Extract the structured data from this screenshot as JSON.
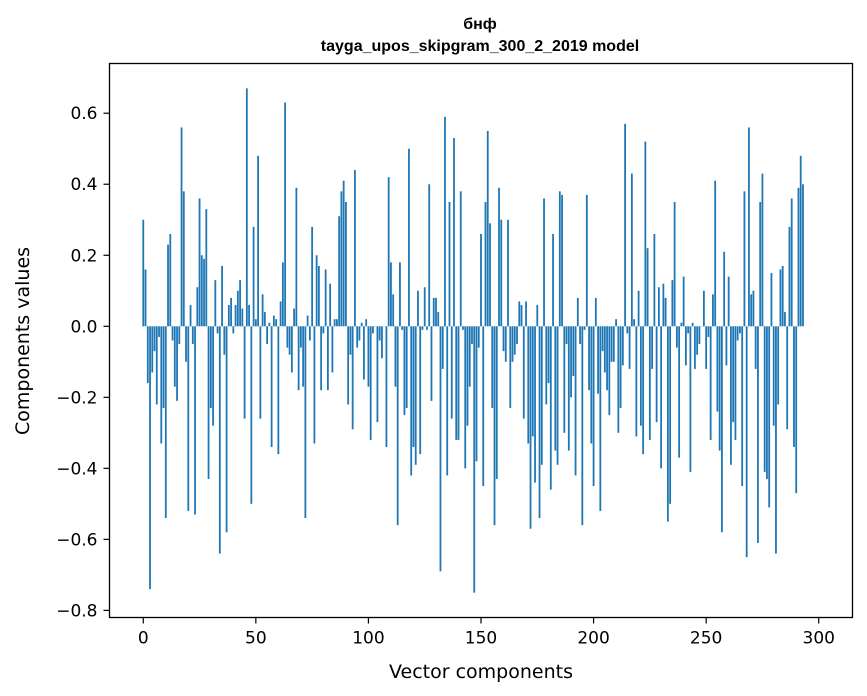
{
  "chart_data": {
    "type": "bar",
    "title": "бнф",
    "subtitle": "tayga_upos_skipgram_300_2_2019 model",
    "xlabel": "Vector components",
    "ylabel": "Components values",
    "xlim": [
      -15,
      315
    ],
    "ylim": [
      -0.82,
      0.74
    ],
    "xticks": [
      0,
      50,
      100,
      150,
      200,
      250,
      300
    ],
    "xtick_labels": [
      "0",
      "50",
      "100",
      "150",
      "200",
      "250",
      "300"
    ],
    "yticks": [
      -0.8,
      -0.6,
      -0.4,
      -0.2,
      0.0,
      0.2,
      0.4,
      0.6
    ],
    "ytick_labels": [
      "−0.8",
      "−0.6",
      "−0.4",
      "−0.2",
      "0.0",
      "0.2",
      "0.4",
      "0.6"
    ],
    "bar_color": "#1f77b4",
    "grid": false,
    "legend": false,
    "values": [
      0.3,
      0.16,
      -0.16,
      -0.74,
      -0.13,
      -0.07,
      -0.22,
      -0.03,
      -0.33,
      -0.23,
      -0.54,
      0.23,
      0.26,
      -0.04,
      -0.17,
      -0.21,
      -0.05,
      0.56,
      0.38,
      -0.1,
      -0.52,
      0.06,
      -0.05,
      -0.53,
      0.11,
      0.36,
      0.2,
      0.19,
      0.33,
      -0.43,
      -0.23,
      -0.28,
      0.13,
      -0.02,
      -0.64,
      0.17,
      -0.08,
      -0.58,
      0.06,
      0.08,
      -0.02,
      0.06,
      0.1,
      0.13,
      0.05,
      -0.26,
      0.67,
      0.06,
      -0.5,
      0.28,
      0.02,
      0.48,
      -0.26,
      0.09,
      0.04,
      -0.05,
      0.01,
      -0.34,
      0.03,
      0.02,
      -0.36,
      0.07,
      0.18,
      0.63,
      -0.06,
      -0.08,
      -0.13,
      0.05,
      0.39,
      -0.18,
      -0.06,
      -0.17,
      -0.54,
      0.03,
      -0.04,
      0.28,
      -0.33,
      0.2,
      0.17,
      -0.18,
      -0.02,
      0.16,
      -0.18,
      0.12,
      -0.13,
      0.02,
      0.02,
      0.31,
      0.38,
      0.41,
      0.35,
      -0.22,
      -0.08,
      -0.29,
      0.44,
      -0.06,
      -0.04,
      0.01,
      -0.15,
      0.02,
      -0.17,
      -0.32,
      -0.02,
      0.0,
      -0.27,
      -0.04,
      -0.09,
      0.0,
      -0.34,
      0.42,
      0.18,
      0.09,
      -0.17,
      -0.56,
      0.18,
      -0.01,
      -0.25,
      -0.23,
      0.5,
      -0.42,
      -0.34,
      -0.39,
      0.1,
      -0.36,
      -0.01,
      0.11,
      -0.01,
      0.4,
      -0.21,
      0.08,
      0.08,
      0.04,
      -0.69,
      -0.12,
      0.59,
      -0.42,
      0.35,
      -0.26,
      0.53,
      -0.32,
      -0.32,
      0.38,
      -0.01,
      -0.4,
      -0.28,
      -0.17,
      -0.05,
      -0.75,
      -0.38,
      -0.06,
      0.26,
      -0.45,
      0.35,
      0.55,
      0.29,
      -0.23,
      -0.56,
      -0.43,
      0.39,
      0.3,
      -0.07,
      -0.1,
      0.3,
      -0.23,
      -0.1,
      -0.08,
      -0.05,
      0.07,
      0.06,
      -0.26,
      0.07,
      -0.33,
      -0.57,
      -0.31,
      -0.44,
      0.06,
      -0.54,
      -0.39,
      0.36,
      -0.22,
      -0.16,
      -0.46,
      0.26,
      -0.35,
      -0.39,
      0.38,
      0.37,
      -0.3,
      -0.05,
      -0.35,
      -0.2,
      -0.14,
      -0.42,
      0.08,
      -0.05,
      -0.56,
      -0.01,
      0.37,
      -0.18,
      -0.33,
      -0.45,
      0.08,
      -0.19,
      -0.52,
      -0.07,
      -0.13,
      -0.18,
      -0.25,
      -0.1,
      -0.1,
      0.02,
      -0.3,
      -0.23,
      -0.11,
      0.57,
      -0.02,
      -0.12,
      0.43,
      0.02,
      -0.31,
      0.1,
      -0.28,
      -0.36,
      0.52,
      0.22,
      -0.32,
      -0.12,
      0.26,
      -0.27,
      0.11,
      -0.4,
      0.12,
      0.08,
      -0.55,
      -0.5,
      0.13,
      0.35,
      -0.06,
      -0.37,
      0.01,
      0.14,
      -0.11,
      -0.02,
      -0.41,
      0.01,
      -0.12,
      -0.08,
      -0.05,
      0.0,
      0.1,
      -0.12,
      -0.03,
      -0.32,
      0.09,
      0.41,
      -0.24,
      -0.35,
      -0.58,
      0.21,
      -0.11,
      0.14,
      -0.39,
      -0.27,
      -0.32,
      -0.04,
      -0.02,
      -0.45,
      0.38,
      -0.65,
      0.56,
      0.09,
      0.1,
      -0.12,
      -0.61,
      0.35,
      0.43,
      -0.41,
      -0.43,
      -0.51,
      0.15,
      -0.28,
      -0.64,
      -0.22,
      0.16,
      0.17,
      0.04,
      -0.29,
      0.28,
      0.36,
      -0.34,
      -0.47,
      0.39,
      0.48,
      0.4
    ],
    "value_range_observed": [
      -0.75,
      0.67
    ]
  }
}
